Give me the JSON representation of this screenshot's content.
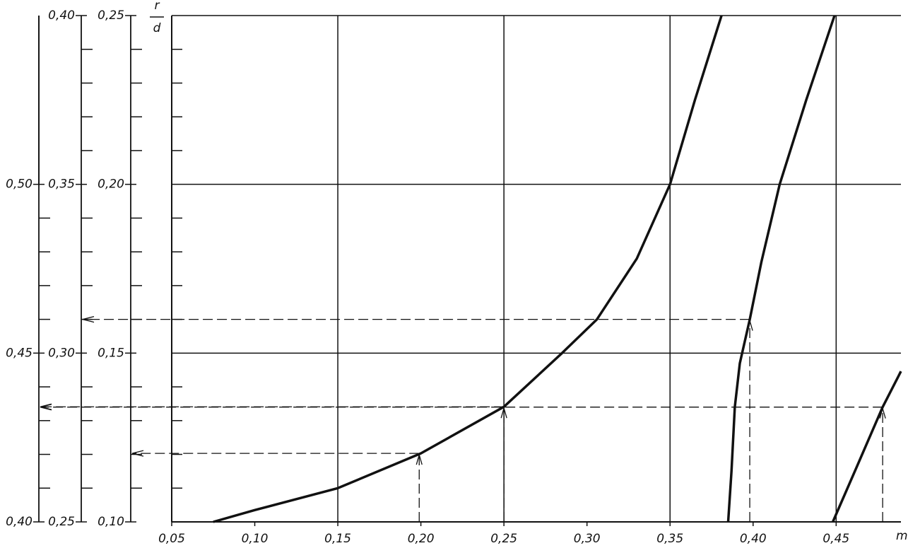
{
  "chart_data": {
    "type": "line",
    "xlabel": "m",
    "ylabel": {
      "numerator": "r",
      "denominator": "d"
    },
    "xlim": [
      0.05,
      0.489
    ],
    "xticks": [
      {
        "value": 0.05,
        "label": "0,05"
      },
      {
        "value": 0.1,
        "label": "0,10"
      },
      {
        "value": 0.15,
        "label": "0,15"
      },
      {
        "value": 0.2,
        "label": "0,20"
      },
      {
        "value": 0.25,
        "label": "0,25"
      },
      {
        "value": 0.3,
        "label": "0,30"
      },
      {
        "value": 0.35,
        "label": "0,35"
      },
      {
        "value": 0.4,
        "label": "0,40"
      },
      {
        "value": 0.45,
        "label": "0,45"
      }
    ],
    "xgrid": [
      0.15,
      0.25,
      0.35,
      0.45
    ],
    "ylim": [
      0.1,
      0.25
    ],
    "yticks": [
      {
        "value": 0.1,
        "label": "0,10"
      },
      {
        "value": 0.15,
        "label": "0,15"
      },
      {
        "value": 0.2,
        "label": "0,20"
      },
      {
        "value": 0.25,
        "label": "0,25"
      }
    ],
    "ygrid": [
      0.15,
      0.2
    ],
    "y2lim": [
      0.25,
      0.4
    ],
    "y2ticks": [
      {
        "value": 0.25,
        "label": "0,25"
      },
      {
        "value": 0.3,
        "label": "0,30"
      },
      {
        "value": 0.35,
        "label": "0,35"
      },
      {
        "value": 0.4,
        "label": "0,40"
      }
    ],
    "y3lim": [
      0.4,
      0.55
    ],
    "y3ticks": [
      {
        "value": 0.4,
        "label": "0,40"
      },
      {
        "value": 0.45,
        "label": "0,45"
      },
      {
        "value": 0.5,
        "label": "0,50"
      }
    ],
    "minor_divisions": 5,
    "series": [
      {
        "color": "#111111",
        "x": [
          0.075,
          0.1,
          0.15,
          0.2,
          0.25,
          0.285,
          0.306,
          0.33,
          0.35,
          0.365,
          0.381
        ],
        "values": [
          0.1,
          0.1035,
          0.11,
          0.1203,
          0.1341,
          0.15,
          0.16,
          0.178,
          0.2,
          0.225,
          0.25
        ]
      },
      {
        "color": "#111111",
        "x": [
          0.385,
          0.387,
          0.389,
          0.392,
          0.398,
          0.405,
          0.416,
          0.432,
          0.449
        ],
        "values": [
          0.1,
          0.115,
          0.134,
          0.147,
          0.16,
          0.177,
          0.2,
          0.225,
          0.25
        ]
      },
      {
        "color": "#111111",
        "x": [
          0.448,
          0.463,
          0.478,
          0.489
        ],
        "values": [
          0.1,
          0.117,
          0.134,
          0.1446
        ]
      }
    ],
    "guides": [
      {
        "x": 0.199,
        "y": 0.1203,
        "to": "y"
      },
      {
        "x": 0.25,
        "y": 0.1341,
        "to": "y3"
      },
      {
        "x": 0.398,
        "y": 0.16,
        "to": "y2"
      },
      {
        "x": 0.478,
        "y": 0.134,
        "to": "y3"
      }
    ]
  }
}
